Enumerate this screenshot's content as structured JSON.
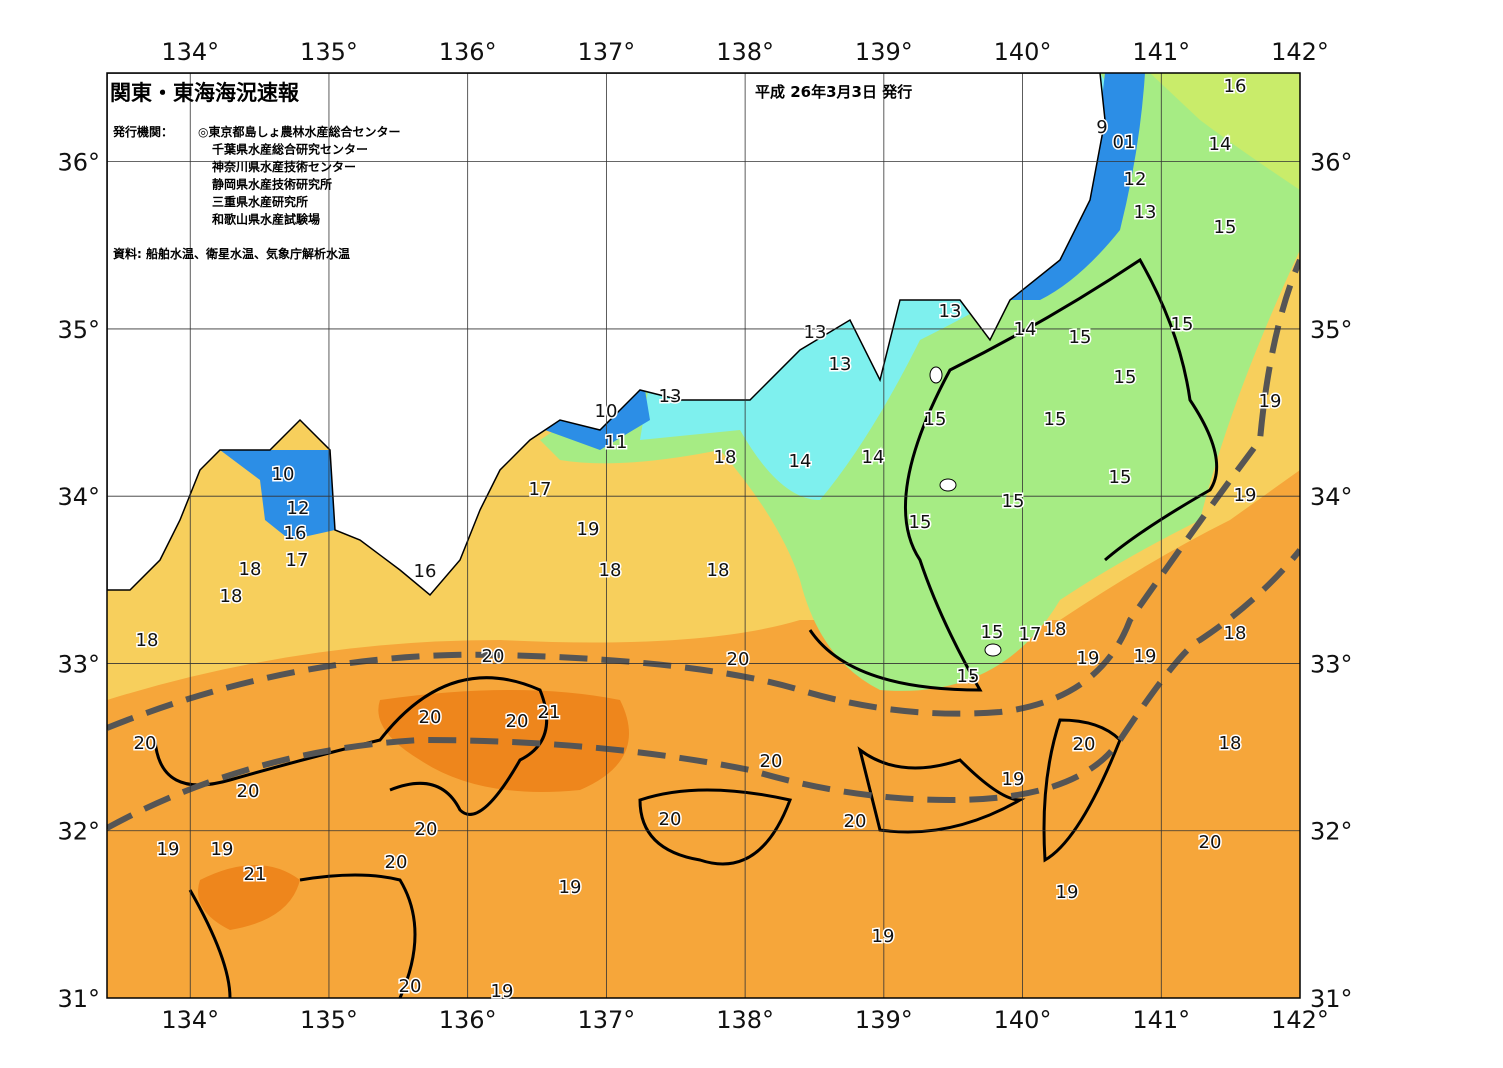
{
  "map": {
    "title": "関東・東海海況速報",
    "date": "平成 26年3月3日 発行",
    "issuer_heading": "発行機関：",
    "issuers": [
      "◎東京都島しょ農林水産総合センター",
      "千葉県水産総合研究センター",
      "神奈川県水産技術センター",
      "静岡県水産技術研究所",
      "三重県水産研究所",
      "和歌山県水産試験場"
    ],
    "source": "資料: 船舶水温、衛星水温、気象庁解析水温",
    "lonlim": [
      133.4,
      142
    ],
    "latlim": [
      31,
      36.53
    ],
    "lon_ticks": [
      {
        "value": 134,
        "label": "134°"
      },
      {
        "value": 135,
        "label": "135°"
      },
      {
        "value": 136,
        "label": "136°"
      },
      {
        "value": 137,
        "label": "137°"
      },
      {
        "value": 138,
        "label": "138°"
      },
      {
        "value": 139,
        "label": "139°"
      },
      {
        "value": 140,
        "label": "140°"
      },
      {
        "value": 141,
        "label": "141°"
      },
      {
        "value": 142,
        "label": "142°"
      }
    ],
    "lat_ticks": [
      {
        "value": 31,
        "label": "31°"
      },
      {
        "value": 32,
        "label": "32°"
      },
      {
        "value": 33,
        "label": "33°"
      },
      {
        "value": 34,
        "label": "34°"
      },
      {
        "value": 35,
        "label": "35°"
      },
      {
        "value": 36,
        "label": "36°"
      }
    ],
    "contour_labels": [
      "16",
      "14",
      "9",
      "01",
      "12",
      "13",
      "15",
      "13",
      "14",
      "15",
      "15",
      "13",
      "13",
      "15",
      "19",
      "15",
      "15",
      "10",
      "13",
      "11",
      "18",
      "14",
      "14",
      "15",
      "19",
      "10",
      "17",
      "12",
      "15",
      "15",
      "19",
      "16",
      "17",
      "18",
      "16",
      "18",
      "18",
      "18",
      "18",
      "15",
      "17",
      "18",
      "18",
      "20",
      "20",
      "19",
      "19",
      "15",
      "21",
      "20",
      "20",
      "20",
      "20",
      "18",
      "20",
      "19",
      "20",
      "20",
      "20",
      "20",
      "19",
      "20",
      "19",
      "20",
      "21",
      "19",
      "19",
      "19",
      "20",
      "19"
    ]
  }
}
